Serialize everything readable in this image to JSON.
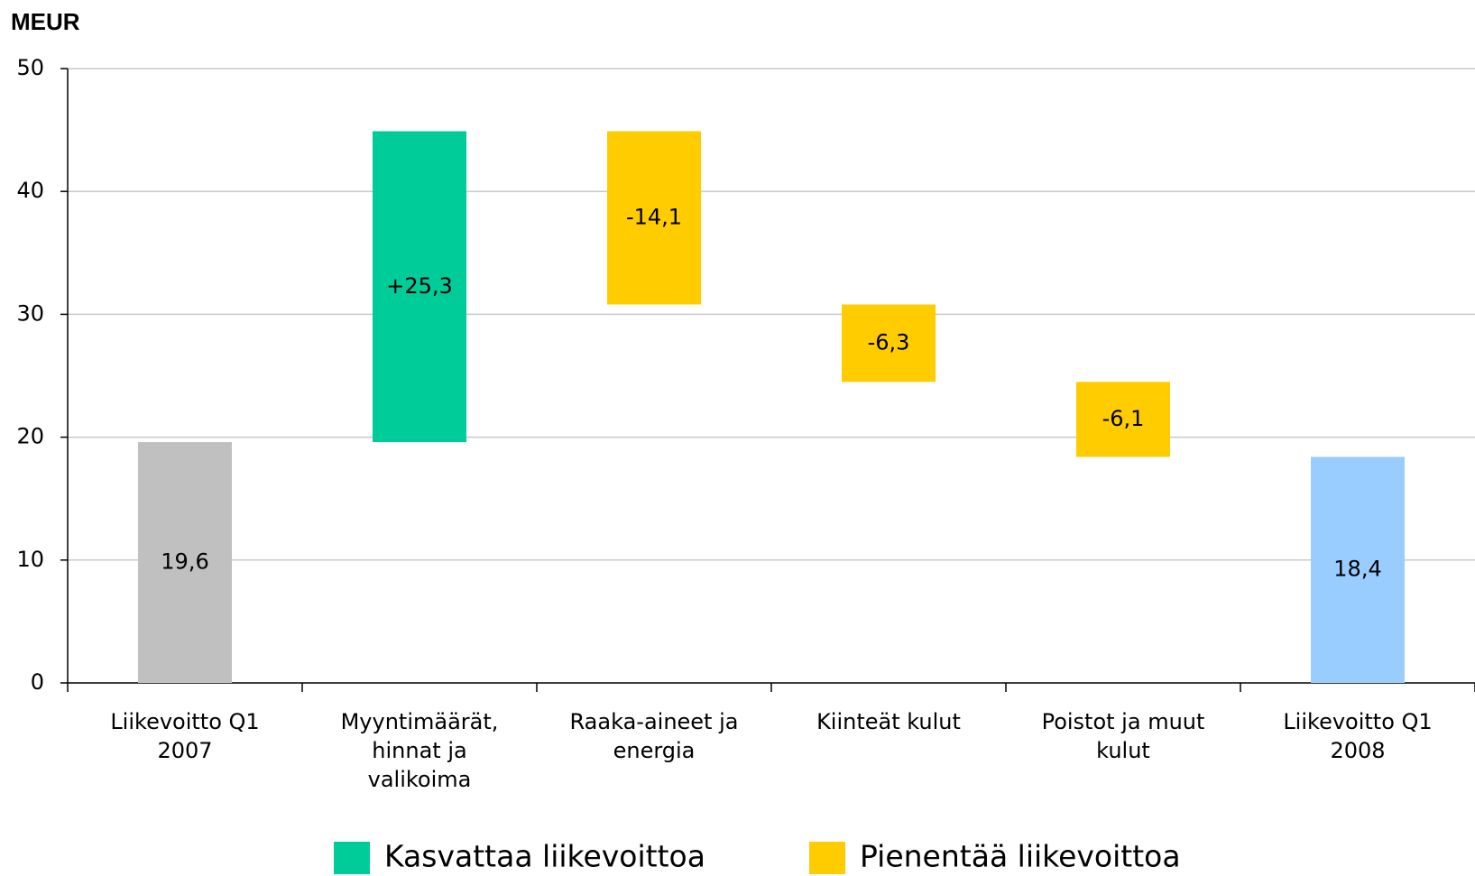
{
  "chart_data": {
    "type": "waterfall",
    "y_label": "MEUR",
    "categories": [
      [
        "Liikevoitto Q1",
        "2007"
      ],
      [
        "Myyntimäärät,",
        "hinnat  ja",
        "valikoima"
      ],
      [
        "Raaka-aineet ja",
        "energia"
      ],
      [
        "Kiinteät kulut"
      ],
      [
        "Poistot ja muut",
        "kulut"
      ],
      [
        "Liikevoitto Q1",
        "2008"
      ]
    ],
    "values": [
      19.6,
      25.3,
      -14.1,
      -6.3,
      -6.1,
      18.4
    ],
    "value_labels": [
      "19,6",
      "+25,3",
      "-14,1",
      "-6,3",
      "-6,1",
      "18,4"
    ],
    "measure": [
      "absolute",
      "relative",
      "relative",
      "relative",
      "relative",
      "total"
    ],
    "colors": [
      "#c0c0c0",
      "#00cc99",
      "#ffcc00",
      "#ffcc00",
      "#ffcc00",
      "#99ccff"
    ],
    "legend": [
      {
        "name": "Kasvattaa liikevoittoa",
        "color": "#00cc99"
      },
      {
        "name": "Pienentää liikevoittoa",
        "color": "#ffcc00"
      }
    ],
    "ylim": [
      0,
      50
    ],
    "yticks": [
      0,
      10,
      20,
      30,
      40,
      50
    ],
    "grid": true
  }
}
